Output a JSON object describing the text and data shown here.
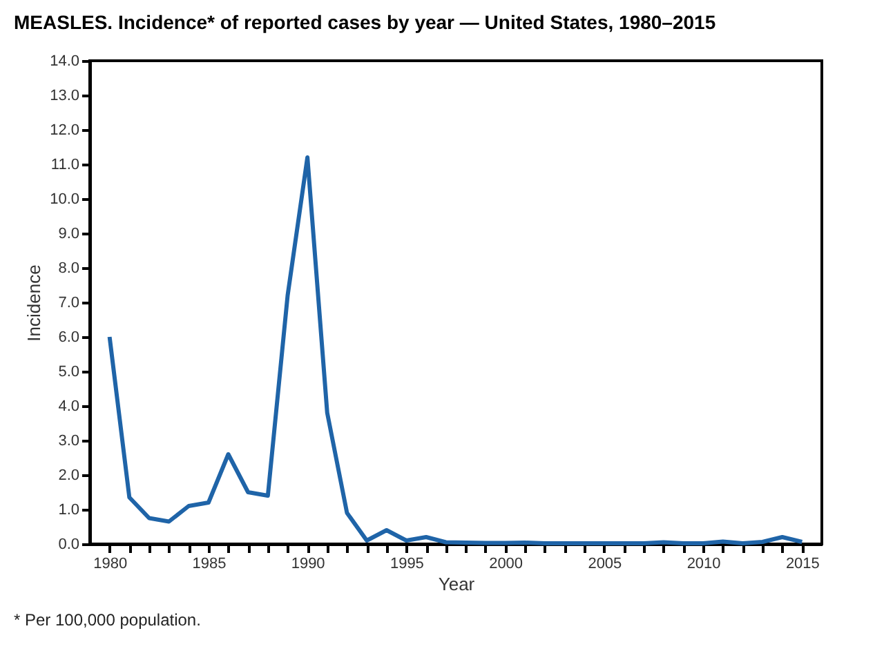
{
  "chart_data": {
    "type": "line",
    "title": "MEASLES. Incidence* of reported cases by year — United States, 1980–2015",
    "xlabel": "Year",
    "ylabel": "Incidence",
    "x": [
      1980,
      1981,
      1982,
      1983,
      1984,
      1985,
      1986,
      1987,
      1988,
      1989,
      1990,
      1991,
      1992,
      1993,
      1994,
      1995,
      1996,
      1997,
      1998,
      1999,
      2000,
      2001,
      2002,
      2003,
      2004,
      2005,
      2006,
      2007,
      2008,
      2009,
      2010,
      2011,
      2012,
      2013,
      2014,
      2015
    ],
    "series": [
      {
        "color": "#1f64a8",
        "values": [
          6.0,
          1.35,
          0.75,
          0.65,
          1.1,
          1.2,
          2.6,
          1.5,
          1.4,
          7.2,
          11.2,
          3.8,
          0.9,
          0.1,
          0.4,
          0.1,
          0.2,
          0.05,
          0.04,
          0.03,
          0.03,
          0.04,
          0.02,
          0.02,
          0.02,
          0.02,
          0.02,
          0.02,
          0.05,
          0.02,
          0.02,
          0.07,
          0.02,
          0.06,
          0.2,
          0.06
        ]
      }
    ],
    "xlim": [
      1979,
      2016
    ],
    "xticks": [
      1980,
      {
        "value": 1981,
        "label": null
      },
      {
        "value": 1982,
        "label": null
      },
      {
        "value": 1983,
        "label": null
      },
      {
        "value": 1984,
        "label": null
      },
      1985,
      {
        "value": 1986,
        "label": null
      },
      {
        "value": 1987,
        "label": null
      },
      {
        "value": 1988,
        "label": null
      },
      {
        "value": 1989,
        "label": null
      },
      1990,
      {
        "value": 1991,
        "label": null
      },
      {
        "value": 1992,
        "label": null
      },
      {
        "value": 1993,
        "label": null
      },
      {
        "value": 1994,
        "label": null
      },
      1995,
      {
        "value": 1996,
        "label": null
      },
      {
        "value": 1997,
        "label": null
      },
      {
        "value": 1998,
        "label": null
      },
      {
        "value": 1999,
        "label": null
      },
      2000,
      {
        "value": 2001,
        "label": null
      },
      {
        "value": 2002,
        "label": null
      },
      {
        "value": 2003,
        "label": null
      },
      {
        "value": 2004,
        "label": null
      },
      2005,
      {
        "value": 2006,
        "label": null
      },
      {
        "value": 2007,
        "label": null
      },
      {
        "value": 2008,
        "label": null
      },
      {
        "value": 2009,
        "label": null
      },
      2010,
      {
        "value": 2011,
        "label": null
      },
      {
        "value": 2012,
        "label": null
      },
      {
        "value": 2013,
        "label": null
      },
      {
        "value": 2014,
        "label": null
      },
      2015
    ],
    "ylim": [
      0,
      14
    ],
    "yticks": [
      {
        "value": 0,
        "label": "0.0"
      },
      {
        "value": 1,
        "label": "1.0"
      },
      {
        "value": 2,
        "label": "2.0"
      },
      {
        "value": 3,
        "label": "3.0"
      },
      {
        "value": 4,
        "label": "4.0"
      },
      {
        "value": 5,
        "label": "5.0"
      },
      {
        "value": 6,
        "label": "6.0"
      },
      {
        "value": 7,
        "label": "7.0"
      },
      {
        "value": 8,
        "label": "8.0"
      },
      {
        "value": 9,
        "label": "9.0"
      },
      {
        "value": 10,
        "label": "10.0"
      },
      {
        "value": 11,
        "label": "11.0"
      },
      {
        "value": 12,
        "label": "12.0"
      },
      {
        "value": 13,
        "label": "13.0"
      },
      {
        "value": 14,
        "label": "14.0"
      }
    ],
    "grid": false,
    "marker": "none",
    "line_style": "solid",
    "annotations": [
      "* Per 100,000 population."
    ]
  }
}
